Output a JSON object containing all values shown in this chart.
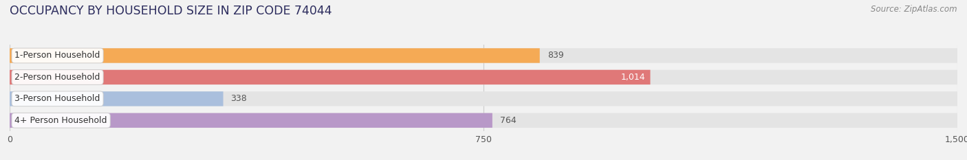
{
  "title": "OCCUPANCY BY HOUSEHOLD SIZE IN ZIP CODE 74044",
  "source": "Source: ZipAtlas.com",
  "categories": [
    "1-Person Household",
    "2-Person Household",
    "3-Person Household",
    "4+ Person Household"
  ],
  "values": [
    839,
    1014,
    338,
    764
  ],
  "bar_colors": [
    "#f5aa55",
    "#e07878",
    "#aabfdd",
    "#b898c8"
  ],
  "xlim": [
    0,
    1500
  ],
  "xticks": [
    0,
    750,
    1500
  ],
  "bg_color": "#f2f2f2",
  "bar_bg_color": "#e4e4e4",
  "title_fontsize": 12.5,
  "source_fontsize": 8.5,
  "label_fontsize": 9,
  "value_fontsize": 9,
  "tick_fontsize": 9,
  "bar_height": 0.68,
  "figsize": [
    14.06,
    2.33
  ],
  "dpi": 100,
  "value_inside_idx": 1,
  "value_inside_color": "#ffffff"
}
